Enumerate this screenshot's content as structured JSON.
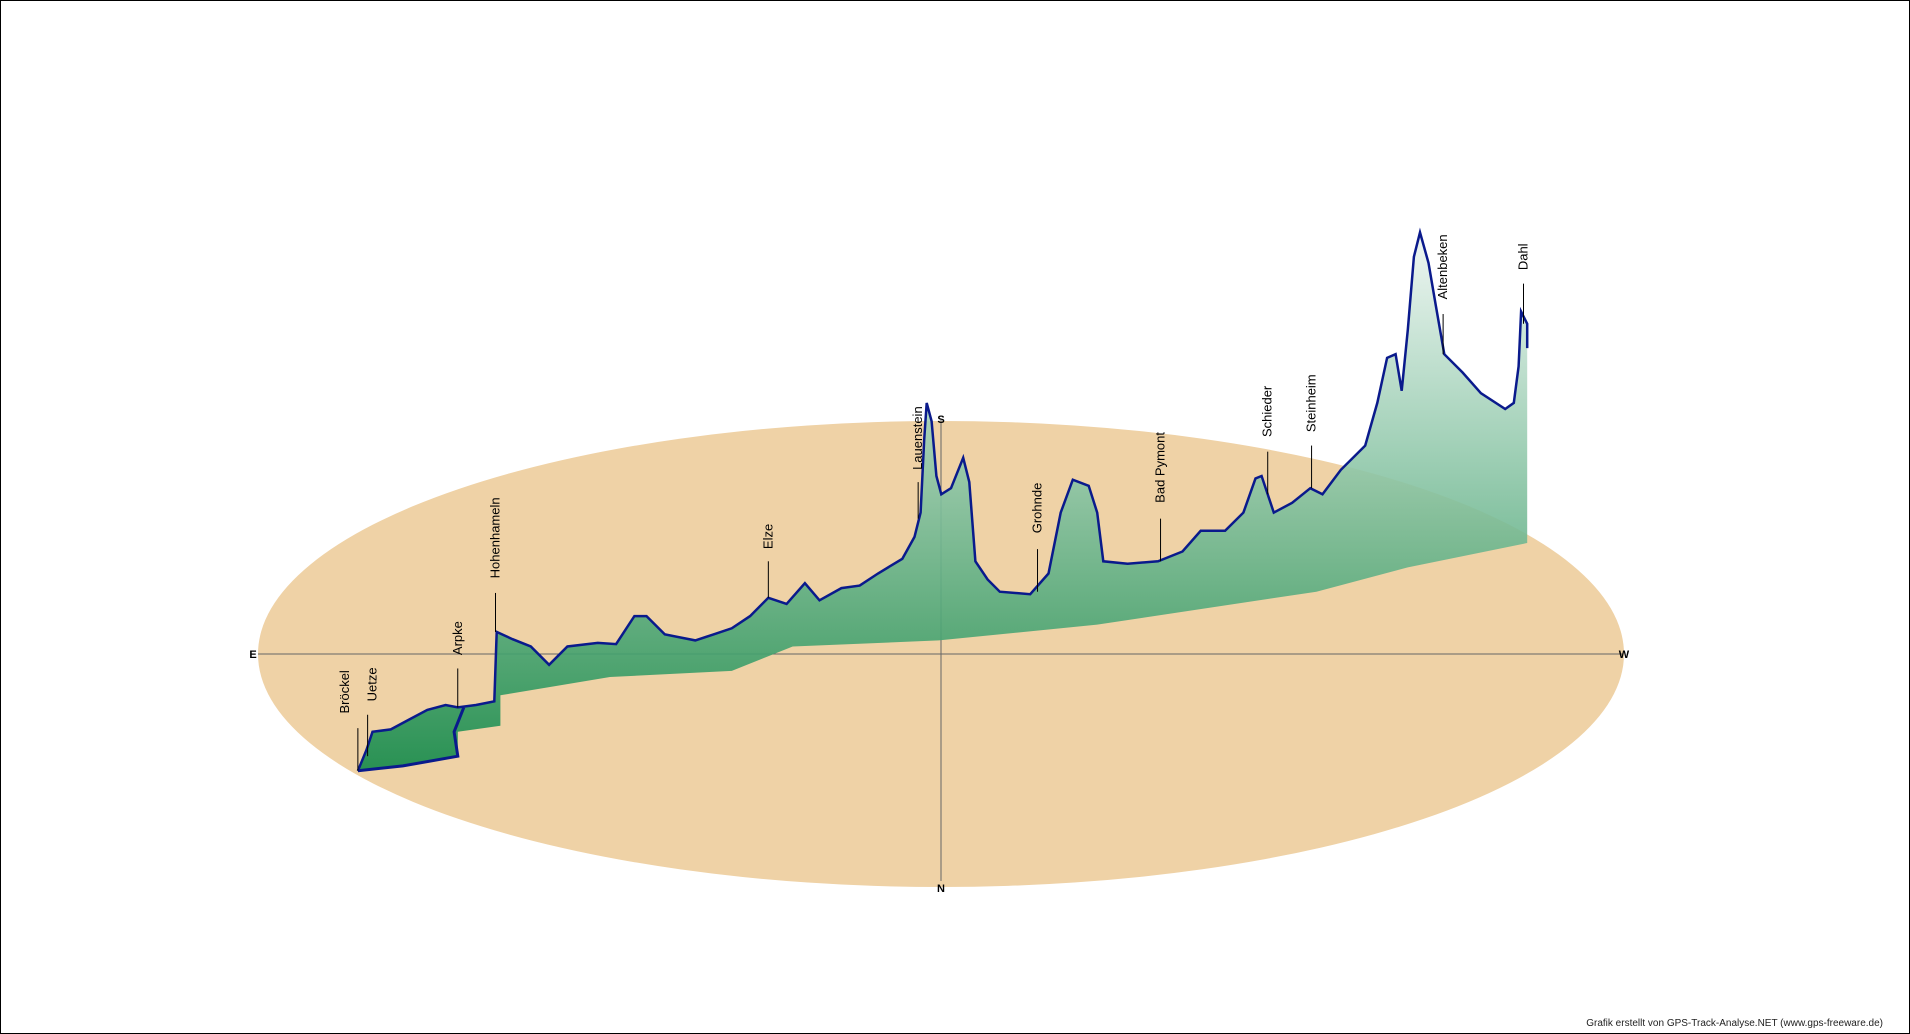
{
  "chart_data": {
    "type": "area",
    "title": "",
    "compass": {
      "east": "E",
      "west": "W",
      "south": "S",
      "north": "N"
    },
    "places": [
      "Bröckel",
      "Uetze",
      "Arpke",
      "Hohenhameln",
      "Elze",
      "Lauenstein",
      "Grohnde",
      "Bad Pymont",
      "Schieder",
      "Steinheim",
      "Altenbeken",
      "Dahl"
    ],
    "colors": {
      "ground": "#efd2a6",
      "profile_line": "#0a1a8c",
      "fill_top": "#eef6f2",
      "fill_bottom": "#138a4a"
    }
  },
  "footer": {
    "credit": "Grafik erstellt von GPS-Track-Analyse.NET (www.gps-freeware.de)"
  }
}
